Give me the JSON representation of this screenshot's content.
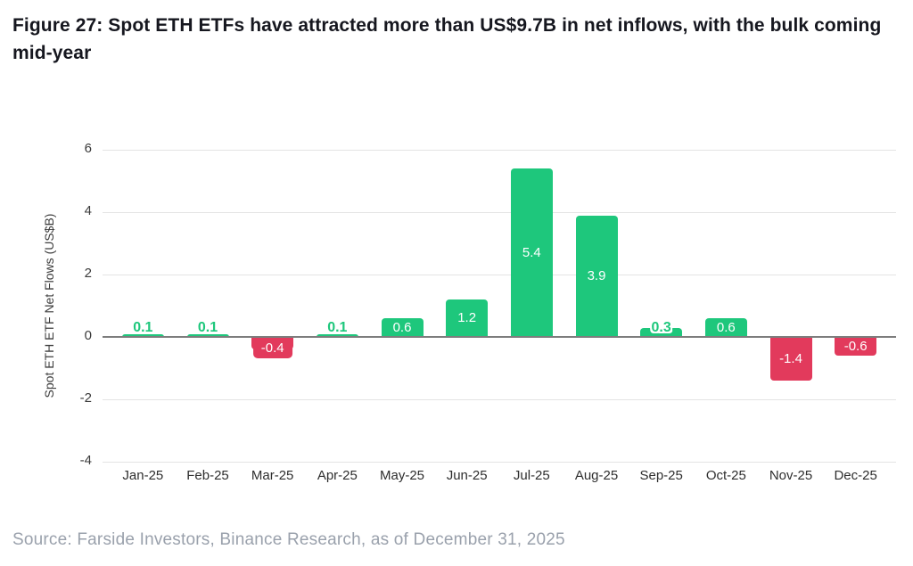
{
  "header": {
    "title": "Figure 27: Spot ETH ETFs have attracted more than US$9.7B in net inflows, with the bulk coming mid-year"
  },
  "chart_data": {
    "type": "bar",
    "title": "Spot ETH ETF net flows by month",
    "categories": [
      "Jan-25",
      "Feb-25",
      "Mar-25",
      "Apr-25",
      "May-25",
      "Jun-25",
      "Jul-25",
      "Aug-25",
      "Sep-25",
      "Oct-25",
      "Nov-25",
      "Dec-25"
    ],
    "values": [
      0.1,
      0.1,
      -0.4,
      0.1,
      0.6,
      1.2,
      5.4,
      3.9,
      0.3,
      0.6,
      -1.4,
      -0.6
    ],
    "data_labels": [
      "0.1",
      "0.1",
      "-0.4",
      "0.1",
      "0.6",
      "1.2",
      "5.4",
      "3.9",
      "0.3",
      "0.6",
      "-1.4",
      "-0.6"
    ],
    "xlabel": "",
    "ylabel": "Spot ETH ETF Net Flows (US$B)",
    "ylim": [
      -4,
      6
    ],
    "yticks": [
      6,
      4,
      2,
      0,
      -2,
      -4
    ],
    "grid": true,
    "legend_position": "none",
    "colors": {
      "positive": "#1ec77c",
      "negative": "#e23a5c",
      "gridline": "#e4e4e4",
      "zero_line": "#7d7d7d",
      "inside_label": "#ffffff"
    }
  },
  "footer": {
    "source": "Source: Farside Investors, Binance Research, as of December 31, 2025"
  }
}
